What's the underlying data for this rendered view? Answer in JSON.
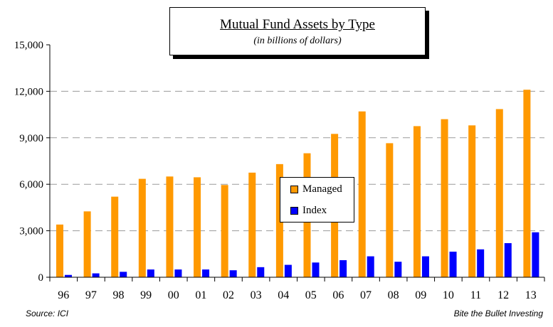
{
  "chart_data": {
    "type": "bar",
    "title": "Mutual Fund Assets by Type",
    "subtitle": "(in billions of dollars)",
    "categories": [
      "96",
      "97",
      "98",
      "99",
      "00",
      "01",
      "02",
      "03",
      "04",
      "05",
      "06",
      "07",
      "08",
      "09",
      "10",
      "11",
      "12",
      "13"
    ],
    "series": [
      {
        "name": "Managed",
        "color": "#FF9900",
        "values": [
          3400,
          4250,
          5200,
          6350,
          6500,
          6450,
          5950,
          6750,
          7300,
          8000,
          9250,
          10700,
          8650,
          9750,
          10200,
          9800,
          10850,
          12100
        ]
      },
      {
        "name": "Index",
        "color": "#0000FF",
        "values": [
          150,
          250,
          350,
          500,
          500,
          500,
          450,
          650,
          800,
          950,
          1100,
          1350,
          1000,
          1350,
          1650,
          1800,
          2200,
          2900
        ]
      }
    ],
    "ylim": [
      0,
      15000
    ],
    "yticks": [
      0,
      3000,
      6000,
      9000,
      12000,
      15000
    ],
    "ytick_labels": [
      "0",
      "3,000",
      "6,000",
      "9,000",
      "12,000",
      "15,000"
    ],
    "grid": true,
    "legend_position": "center"
  },
  "footer": {
    "source": "Source: ICI",
    "credit": "Bite the Bullet Investing"
  }
}
